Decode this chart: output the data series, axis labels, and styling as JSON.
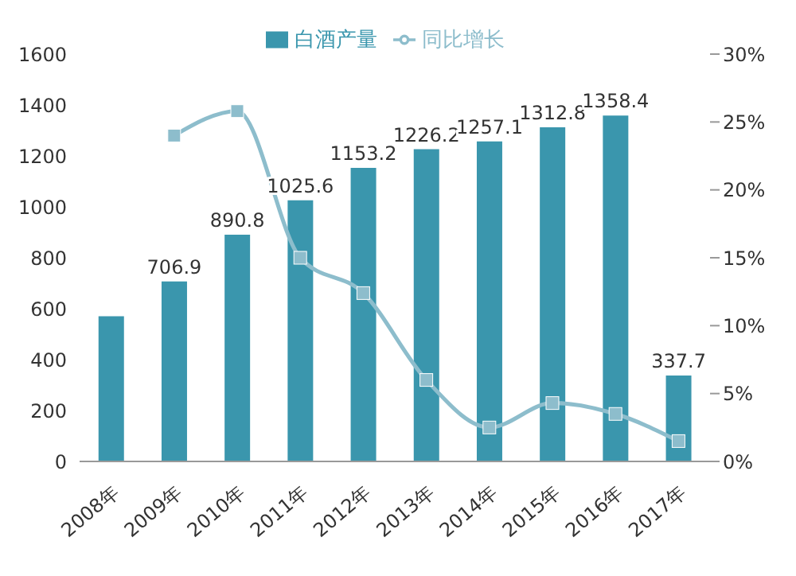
{
  "chart_data": {
    "type": "bar",
    "categories": [
      "2008年",
      "2009年",
      "2010年",
      "2011年",
      "2012年",
      "2013年",
      "2014年",
      "2015年",
      "2016年",
      "2017年"
    ],
    "series": [
      {
        "name": "白酒产量",
        "color": "#3a96ad",
        "values": [
          570,
          706.9,
          890.8,
          1025.6,
          1153.2,
          1226.2,
          1257.1,
          1312.8,
          1358.4,
          337.7
        ],
        "value_labels": [
          null,
          "706.9",
          "890.8",
          "1025.6",
          "1153.2",
          "1226.2",
          "1257.1",
          "1312.8",
          "1358.4",
          "337.7"
        ]
      },
      {
        "name": "同比增长",
        "type": "line",
        "axis": "y2",
        "color": "#8dbdcc",
        "marker": "square",
        "values": [
          null,
          24,
          25.8,
          15,
          12.4,
          6,
          2.5,
          4.3,
          3.5,
          1.5
        ]
      }
    ],
    "ylim": [
      0,
      1600
    ],
    "yticks": [
      0,
      200,
      400,
      600,
      800,
      1000,
      1200,
      1400,
      1600
    ],
    "y2lim": [
      0,
      30
    ],
    "y2ticks": [
      {
        "value": 0,
        "label": "0%"
      },
      {
        "value": 5,
        "label": "5%"
      },
      {
        "value": 10,
        "label": "10%"
      },
      {
        "value": 15,
        "label": "15%"
      },
      {
        "value": 20,
        "label": "20%"
      },
      {
        "value": 25,
        "label": "25%"
      },
      {
        "value": 30,
        "label": "30%"
      }
    ],
    "legend": "top",
    "grid": false
  }
}
